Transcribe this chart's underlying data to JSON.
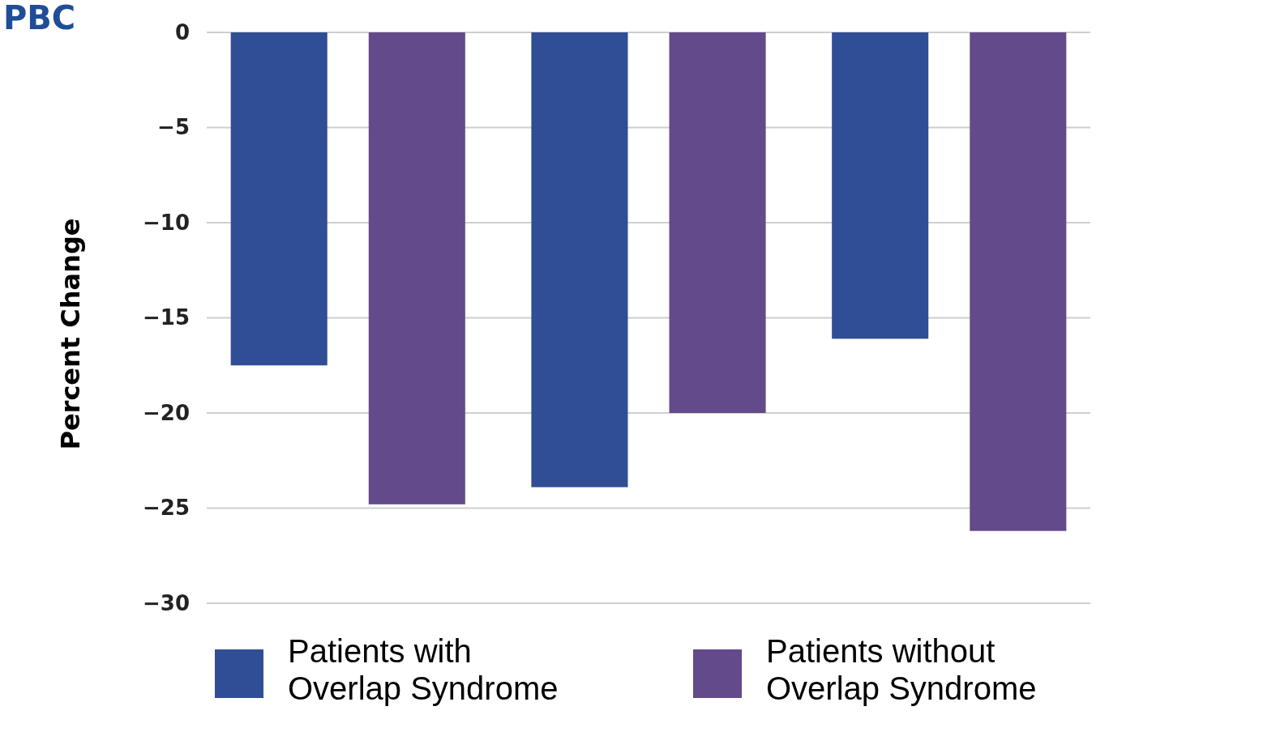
{
  "chart_data": {
    "type": "bar",
    "title": "PBC",
    "ylabel": "Percent Change",
    "categories": [
      null,
      null,
      null
    ],
    "series": [
      {
        "name": "Patients with Overlap Syndrome",
        "color": "#2f4e96",
        "values": [
          -17.5,
          -23.9,
          -16.1
        ]
      },
      {
        "name": "Patients without Overlap Syndrome",
        "color": "#634a8a",
        "values": [
          -24.8,
          -20.0,
          -26.2
        ]
      }
    ],
    "ylim": [
      -30,
      0
    ],
    "yticks": [
      -30,
      -25,
      -20,
      -15,
      -10,
      -5,
      0
    ],
    "grid": "y",
    "legend": "bottom",
    "tick_labels": "y"
  }
}
